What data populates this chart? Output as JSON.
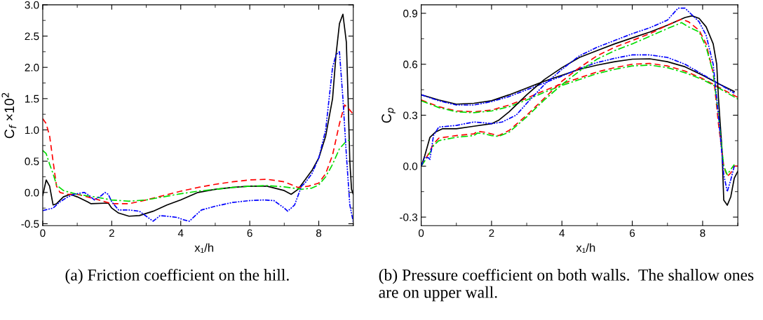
{
  "chart_data": [
    {
      "type": "line",
      "ylabel": "C$_{f}$ ×10$^{2}$",
      "xlabel": "x₁/h",
      "xlim": [
        0,
        9
      ],
      "ylim": [
        -0.53,
        3.0
      ],
      "xticks": [
        0,
        2,
        4,
        6,
        8
      ],
      "yticks": [
        -0.5,
        {
          "value": 0,
          "label": "0.0"
        },
        0.5,
        {
          "value": 1,
          "label": "1.0"
        },
        1.5,
        {
          "value": 2,
          "label": "2.0"
        },
        2.5,
        {
          "value": 3,
          "label": "3.0"
        }
      ],
      "grid": false,
      "legend": false,
      "annotations": [
        "(a) Friction coefficient on the hill."
      ],
      "series": [
        {
          "color": "#000000",
          "line_style": "solid",
          "x": [
            0,
            0.1,
            0.2,
            0.3,
            0.4,
            0.6,
            0.8,
            1.0,
            1.3,
            1.4,
            1.9,
            2.0,
            2.2,
            2.5,
            2.8,
            3.2,
            3.6,
            4.0,
            4.5,
            5.0,
            5.5,
            6.0,
            6.5,
            7.0,
            7.2,
            7.4,
            7.6,
            7.8,
            8.0,
            8.2,
            8.4,
            8.5,
            8.6,
            8.7,
            8.8,
            8.85,
            8.9,
            8.95,
            9.0
          ],
          "values": [
            -0.05,
            0.2,
            0.1,
            -0.2,
            -0.18,
            -0.07,
            -0.03,
            -0.07,
            -0.15,
            -0.18,
            -0.17,
            -0.25,
            -0.33,
            -0.38,
            -0.37,
            -0.3,
            -0.2,
            -0.12,
            0.0,
            0.05,
            0.08,
            0.1,
            0.1,
            0.03,
            -0.03,
            0.05,
            0.2,
            0.35,
            0.55,
            0.9,
            1.5,
            2.2,
            2.7,
            2.85,
            2.4,
            1.5,
            0.5,
            0.05,
            -0.03
          ]
        },
        {
          "color": "#ff0000",
          "line_style": "dashed",
          "x": [
            0,
            0.1,
            0.2,
            0.3,
            0.4,
            0.5,
            0.7,
            1.0,
            1.5,
            2.0,
            2.5,
            3.0,
            3.5,
            4.0,
            4.5,
            5.0,
            5.5,
            6.0,
            6.5,
            7.0,
            7.4,
            7.7,
            8.0,
            8.2,
            8.4,
            8.6,
            8.75,
            8.85,
            9.0
          ],
          "values": [
            1.18,
            1.1,
            0.9,
            0.5,
            0.1,
            0.0,
            -0.03,
            -0.03,
            -0.1,
            -0.18,
            -0.18,
            -0.12,
            -0.05,
            0.02,
            0.08,
            0.13,
            0.17,
            0.2,
            0.21,
            0.17,
            0.08,
            0.1,
            0.15,
            0.3,
            0.6,
            1.1,
            1.4,
            1.35,
            1.25
          ]
        },
        {
          "color": "#00dd00",
          "line_style": "dashdot",
          "x": [
            0,
            0.1,
            0.2,
            0.3,
            0.4,
            0.6,
            0.8,
            1.0,
            1.5,
            2.0,
            2.5,
            3.0,
            3.5,
            4.0,
            4.5,
            5.0,
            5.5,
            6.0,
            6.5,
            7.0,
            7.5,
            7.8,
            8.0,
            8.2,
            8.4,
            8.6,
            8.8,
            8.9
          ],
          "values": [
            0.67,
            0.62,
            0.45,
            0.3,
            0.12,
            0.03,
            0.0,
            -0.03,
            -0.07,
            -0.12,
            -0.14,
            -0.12,
            -0.07,
            -0.02,
            0.02,
            0.05,
            0.08,
            0.1,
            0.11,
            0.09,
            0.05,
            0.07,
            0.12,
            0.25,
            0.45,
            0.7,
            0.82,
            0.84
          ]
        },
        {
          "color": "#0000ff",
          "line_style": "dashdotdot",
          "x": [
            0,
            0.3,
            0.5,
            0.7,
            0.9,
            1.2,
            1.3,
            1.5,
            1.7,
            1.8,
            1.9,
            2.0,
            2.2,
            2.5,
            2.8,
            3.0,
            3.2,
            3.4,
            3.6,
            3.9,
            4.1,
            4.25,
            4.4,
            4.6,
            5.0,
            5.5,
            6.0,
            6.4,
            6.7,
            7.0,
            7.1,
            7.3,
            7.5,
            7.6,
            7.8,
            8.0,
            8.2,
            8.3,
            8.4,
            8.5,
            8.6,
            8.7,
            8.8,
            8.9,
            9.0
          ],
          "values": [
            -0.29,
            -0.25,
            -0.15,
            -0.08,
            -0.03,
            0.0,
            -0.03,
            -0.12,
            -0.05,
            0.0,
            -0.03,
            -0.15,
            -0.28,
            -0.28,
            -0.3,
            -0.38,
            -0.46,
            -0.37,
            -0.38,
            -0.4,
            -0.44,
            -0.46,
            -0.38,
            -0.28,
            -0.22,
            -0.16,
            -0.13,
            -0.12,
            -0.13,
            -0.25,
            -0.3,
            -0.2,
            0.1,
            0.15,
            0.3,
            0.55,
            1.0,
            1.5,
            2.0,
            2.2,
            2.25,
            1.5,
            0.6,
            -0.2,
            -0.47
          ]
        }
      ]
    },
    {
      "type": "line",
      "ylabel": "C$_{p}$",
      "xlabel": "x₁/h",
      "xlim": [
        0,
        9
      ],
      "ylim": [
        -0.35,
        0.95
      ],
      "xticks": [
        0,
        2,
        4,
        6,
        8
      ],
      "yticks": [
        -0.3,
        {
          "value": 0,
          "label": "0.0"
        },
        0.3,
        0.6,
        0.9
      ],
      "grid": false,
      "legend": false,
      "annotations": [
        "(b) Pressure coefficient on both walls.  The shallow ones are on upper wall."
      ],
      "series": [
        {
          "color": "#000000",
          "line_style": "solid",
          "x": [
            0,
            0.5,
            1,
            1.5,
            2,
            2.5,
            3,
            3.5,
            4,
            4.5,
            5,
            5.5,
            6,
            6.5,
            7,
            7.5,
            8,
            8.5,
            8.9
          ],
          "values": [
            0.42,
            0.39,
            0.365,
            0.37,
            0.385,
            0.42,
            0.46,
            0.5,
            0.535,
            0.57,
            0.595,
            0.615,
            0.63,
            0.632,
            0.615,
            0.585,
            0.535,
            0.48,
            0.44
          ]
        },
        {
          "color": "#0000ff",
          "line_style": "dashdotdot",
          "x": [
            0,
            0.5,
            1,
            1.5,
            2,
            2.5,
            3,
            3.5,
            4,
            4.5,
            5,
            5.5,
            6,
            6.5,
            7,
            7.5,
            8,
            8.5,
            8.9
          ],
          "values": [
            0.42,
            0.385,
            0.36,
            0.36,
            0.38,
            0.41,
            0.45,
            0.49,
            0.53,
            0.575,
            0.61,
            0.635,
            0.655,
            0.655,
            0.64,
            0.6,
            0.54,
            0.48,
            0.43
          ]
        },
        {
          "color": "#ff0000",
          "line_style": "dashed",
          "x": [
            0,
            0.5,
            1,
            1.5,
            2,
            2.5,
            3,
            3.5,
            4,
            4.5,
            5,
            5.5,
            6,
            6.5,
            7,
            7.5,
            8,
            8.5,
            9
          ],
          "values": [
            0.39,
            0.35,
            0.325,
            0.32,
            0.33,
            0.36,
            0.4,
            0.445,
            0.485,
            0.52,
            0.555,
            0.58,
            0.6,
            0.605,
            0.59,
            0.56,
            0.515,
            0.46,
            0.405
          ]
        },
        {
          "color": "#00dd00",
          "line_style": "dashdot",
          "x": [
            0,
            0.5,
            1,
            1.5,
            2,
            2.5,
            3,
            3.5,
            4,
            4.5,
            5,
            5.5,
            6,
            6.5,
            7,
            7.5,
            8,
            8.5,
            9
          ],
          "values": [
            0.385,
            0.345,
            0.32,
            0.315,
            0.325,
            0.35,
            0.39,
            0.435,
            0.475,
            0.51,
            0.545,
            0.57,
            0.59,
            0.595,
            0.58,
            0.55,
            0.51,
            0.455,
            0.395
          ]
        },
        {
          "color": "#000000",
          "line_style": "solid",
          "x": [
            0,
            0.1,
            0.25,
            0.4,
            0.6,
            1.0,
            1.5,
            2.0,
            2.2,
            2.5,
            3,
            3.5,
            4,
            4.5,
            5,
            5.5,
            6,
            6.5,
            7,
            7.5,
            7.7,
            7.9,
            8.1,
            8.3,
            8.4,
            8.45,
            8.55,
            8.6,
            8.7,
            8.8,
            8.9,
            9.0
          ],
          "values": [
            0.0,
            0.06,
            0.17,
            0.2,
            0.22,
            0.22,
            0.235,
            0.25,
            0.27,
            0.32,
            0.42,
            0.51,
            0.58,
            0.64,
            0.68,
            0.72,
            0.755,
            0.79,
            0.83,
            0.875,
            0.885,
            0.87,
            0.82,
            0.72,
            0.6,
            0.4,
            0.1,
            -0.2,
            -0.23,
            -0.18,
            -0.07,
            -0.03
          ]
        },
        {
          "color": "#ff0000",
          "line_style": "dashed",
          "x": [
            0,
            0.2,
            0.35,
            0.5,
            1.0,
            1.5,
            1.6,
            1.8,
            2.0,
            2.2,
            2.5,
            3,
            3.5,
            4,
            4.5,
            5,
            5.5,
            6,
            6.5,
            7,
            7.4,
            7.6,
            7.9,
            8.1,
            8.3,
            8.45,
            8.6,
            8.7,
            8.8,
            8.9,
            9.0
          ],
          "values": [
            0.0,
            0.07,
            0.13,
            0.165,
            0.18,
            0.19,
            0.205,
            0.2,
            0.19,
            0.18,
            0.21,
            0.3,
            0.4,
            0.5,
            0.58,
            0.65,
            0.7,
            0.74,
            0.78,
            0.83,
            0.865,
            0.85,
            0.8,
            0.72,
            0.55,
            0.25,
            0.0,
            -0.06,
            -0.04,
            0.0,
            0.0
          ]
        },
        {
          "color": "#00dd00",
          "line_style": "dashdot",
          "x": [
            0,
            0.2,
            0.35,
            0.5,
            1.0,
            1.5,
            1.6,
            1.8,
            2.0,
            2.2,
            2.5,
            3,
            3.5,
            4,
            4.5,
            5,
            5.5,
            6,
            6.5,
            7,
            7.4,
            7.6,
            7.9,
            8.1,
            8.3,
            8.45,
            8.6,
            8.7,
            8.8,
            8.9
          ],
          "values": [
            0.0,
            0.06,
            0.12,
            0.15,
            0.17,
            0.18,
            0.195,
            0.19,
            0.18,
            0.175,
            0.2,
            0.29,
            0.39,
            0.48,
            0.56,
            0.63,
            0.68,
            0.72,
            0.765,
            0.81,
            0.845,
            0.82,
            0.79,
            0.7,
            0.55,
            0.3,
            0.0,
            -0.05,
            -0.02,
            0.01
          ]
        },
        {
          "color": "#0000ff",
          "line_style": "dashdotdot",
          "x": [
            0,
            0.1,
            0.2,
            0.25,
            0.35,
            0.5,
            1.0,
            1.5,
            1.8,
            2.0,
            2.3,
            2.7,
            3,
            3.5,
            4,
            4.5,
            5,
            5.5,
            6,
            6.5,
            7,
            7.3,
            7.5,
            7.7,
            7.9,
            8.1,
            8.3,
            8.45,
            8.6,
            8.7,
            8.8,
            8.9
          ],
          "values": [
            0.0,
            0.05,
            0.05,
            0.04,
            0.18,
            0.23,
            0.24,
            0.26,
            0.255,
            0.25,
            0.26,
            0.3,
            0.37,
            0.48,
            0.57,
            0.65,
            0.7,
            0.74,
            0.78,
            0.815,
            0.86,
            0.93,
            0.93,
            0.89,
            0.85,
            0.77,
            0.6,
            0.3,
            -0.05,
            -0.15,
            -0.08,
            0.0
          ]
        }
      ]
    }
  ]
}
